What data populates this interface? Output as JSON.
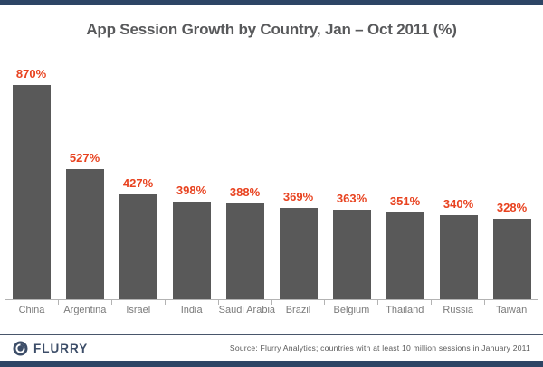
{
  "header": {
    "title": "App Session Growth by Country, Jan – Oct 2011 (%)"
  },
  "chart_data": {
    "type": "bar",
    "title": "App Session Growth by Country, Jan – Oct 2011 (%)",
    "categories": [
      "China",
      "Argentina",
      "Israel",
      "India",
      "Saudi Arabia",
      "Brazil",
      "Belgium",
      "Thailand",
      "Russia",
      "Taiwan"
    ],
    "values": [
      870,
      527,
      427,
      398,
      388,
      369,
      363,
      351,
      340,
      328
    ],
    "value_labels": [
      "870%",
      "527%",
      "427%",
      "398%",
      "388%",
      "369%",
      "363%",
      "351%",
      "340%",
      "328%"
    ],
    "xlabel": "",
    "ylabel": "",
    "ylim": [
      0,
      960
    ],
    "grid": false,
    "legend_position": "none",
    "bar_color": "#595959",
    "value_label_color": "#e8421f"
  },
  "footer": {
    "logo_text": "FLURRY",
    "source": "Source: Flurry Analytics; countries with at least 10 million sessions in January 2011"
  },
  "colors": {
    "band_navy": "#2d4565",
    "bar_gray": "#595959",
    "accent_red": "#e8421f",
    "title_gray": "#58595b",
    "axis_gray": "#b3b3b3"
  }
}
